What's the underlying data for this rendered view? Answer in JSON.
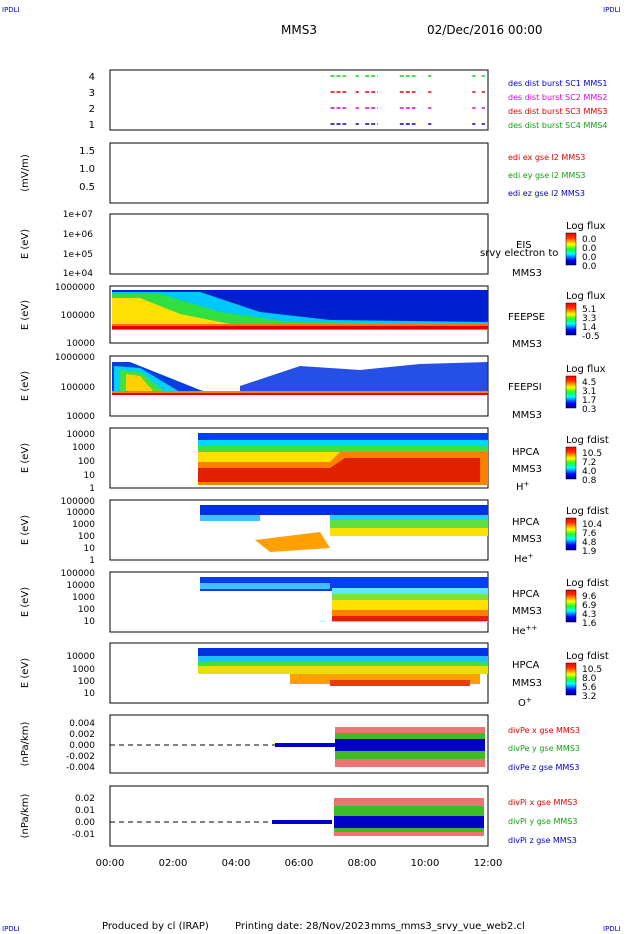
{
  "header": {
    "corner_tl": "IPDLI",
    "corner_tr": "IPDLI",
    "corner_bl": "IPDLI",
    "corner_br": "IPDLI",
    "spacecraft": "MMS3",
    "date": "02/Dec/2016 00:00"
  },
  "footer": {
    "produced_by": "Produced by cl (IRAP)",
    "printing_date": "Printing date: 28/Nov/2023",
    "script_name": "mms_mms3_srvy_vue_web2.cl"
  },
  "colors": {
    "red": "#e00000",
    "green": "#10d010",
    "blue": "#0000c8",
    "magenta": "#e000e0"
  },
  "chart_data": {
    "type": "stacked-time-series",
    "x_ticks": [
      "00:00",
      "02:00",
      "04:00",
      "06:00",
      "08:00",
      "10:00",
      "12:00"
    ],
    "xlim_hours": [
      0,
      12
    ],
    "panels": [
      {
        "id": "burst",
        "ylabel": "",
        "yticks": [
          "4",
          "3",
          "2",
          "1"
        ],
        "legend": [
          {
            "text": "des dist burst SC1 MMS1",
            "color": "#0000c8"
          },
          {
            "text": "des dist burst SC2 MMS2",
            "color": "#e000e0"
          },
          {
            "text": "des dist burst SC3 MMS3",
            "color": "#e00000"
          },
          {
            "text": "des dist burst SC4 MMS4",
            "color": "#10d010"
          }
        ],
        "segments_hours": [
          [
            7.0,
            7.5
          ],
          [
            7.8,
            7.9
          ],
          [
            8.1,
            8.5
          ],
          [
            9.2,
            9.7
          ],
          [
            10.1,
            10.2
          ],
          [
            11.5,
            11.6
          ],
          [
            11.8,
            11.9
          ]
        ]
      },
      {
        "id": "edi",
        "ylabel": "(mV/m)",
        "yticks": [
          "1.5",
          "1.0",
          "0.5"
        ],
        "legend": [
          {
            "text": "edi ex gse l2 MMS3",
            "color": "#e00000"
          },
          {
            "text": "edi ey gse l2 MMS3",
            "color": "#10d010"
          },
          {
            "text": "edi ez gse l2 MMS3",
            "color": "#0000c8"
          }
        ]
      },
      {
        "id": "eis",
        "ylabel": "E (eV)",
        "yticks": [
          "1e+07",
          "1e+06",
          "1e+05",
          "1e+04"
        ],
        "instrument": "EIS",
        "sc": "MMS3",
        "overlay": "srvy electron to",
        "cbar_title": "Log flux",
        "cbar_ticks": [
          "0.0",
          "0.0",
          "0.0",
          "0.0"
        ]
      },
      {
        "id": "feepse",
        "ylabel": "E (eV)",
        "yticks": [
          "1000000",
          "100000",
          "10000"
        ],
        "instrument": "FEEPSE",
        "sc": "MMS3",
        "cbar_title": "Log flux",
        "cbar_ticks": [
          "5.1",
          "3.3",
          "1.4",
          "-0.5"
        ]
      },
      {
        "id": "feepsi",
        "ylabel": "E (eV)",
        "yticks": [
          "1000000",
          "100000",
          "10000"
        ],
        "instrument": "FEEPSI",
        "sc": "MMS3",
        "cbar_title": "Log flux",
        "cbar_ticks": [
          "4.5",
          "3.1",
          "1.7",
          "0.3"
        ]
      },
      {
        "id": "hpca-h",
        "ylabel": "E (eV)",
        "yticks": [
          "10000",
          "1000",
          "100",
          "10",
          "1"
        ],
        "instrument": "HPCA",
        "sc": "MMS3",
        "species": "H",
        "species_sup": "+",
        "cbar_title": "Log fdist",
        "cbar_ticks": [
          "10.5",
          "7.2",
          "4.0",
          "0.8"
        ]
      },
      {
        "id": "hpca-he",
        "ylabel": "E (eV)",
        "yticks": [
          "100000",
          "10000",
          "1000",
          "100",
          "10",
          "1"
        ],
        "instrument": "HPCA",
        "sc": "MMS3",
        "species": "He",
        "species_sup": "+",
        "cbar_title": "Log fdist",
        "cbar_ticks": [
          "10.4",
          "7.6",
          "4.8",
          "1.9"
        ]
      },
      {
        "id": "hpca-hepp",
        "ylabel": "E (eV)",
        "yticks": [
          "100000",
          "10000",
          "1000",
          "100",
          "10"
        ],
        "instrument": "HPCA",
        "sc": "MMS3",
        "species": "He",
        "species_sup": "++",
        "cbar_title": "Log fdist",
        "cbar_ticks": [
          "9.6",
          "6.9",
          "4.3",
          "1.6"
        ]
      },
      {
        "id": "hpca-o",
        "ylabel": "E (eV)",
        "yticks": [
          "10000",
          "1000",
          "100",
          "10"
        ],
        "instrument": "HPCA",
        "sc": "MMS3",
        "species": "O",
        "species_sup": "+",
        "cbar_title": "Log fdist",
        "cbar_ticks": [
          "10.5",
          "8.0",
          "5.6",
          "3.2"
        ]
      },
      {
        "id": "divpe",
        "ylabel": "(nPa/km)",
        "yticks": [
          "0.004",
          "0.002",
          "0.000",
          "-0.002",
          "-0.004"
        ],
        "legend": [
          {
            "text": "divPe x gse MMS3",
            "color": "#e00000"
          },
          {
            "text": "divPe y gse MMS3",
            "color": "#10d010"
          },
          {
            "text": "divPe z gse MMS3",
            "color": "#0000c8"
          }
        ]
      },
      {
        "id": "divpi",
        "ylabel": "(nPa/km)",
        "yticks": [
          "0.02",
          "0.01",
          "0.00",
          "-0.01"
        ],
        "legend": [
          {
            "text": "divPi x gse MMS3",
            "color": "#e00000"
          },
          {
            "text": "divPi y gse MMS3",
            "color": "#10d010"
          },
          {
            "text": "divPi z gse MMS3",
            "color": "#0000c8"
          }
        ]
      }
    ]
  }
}
